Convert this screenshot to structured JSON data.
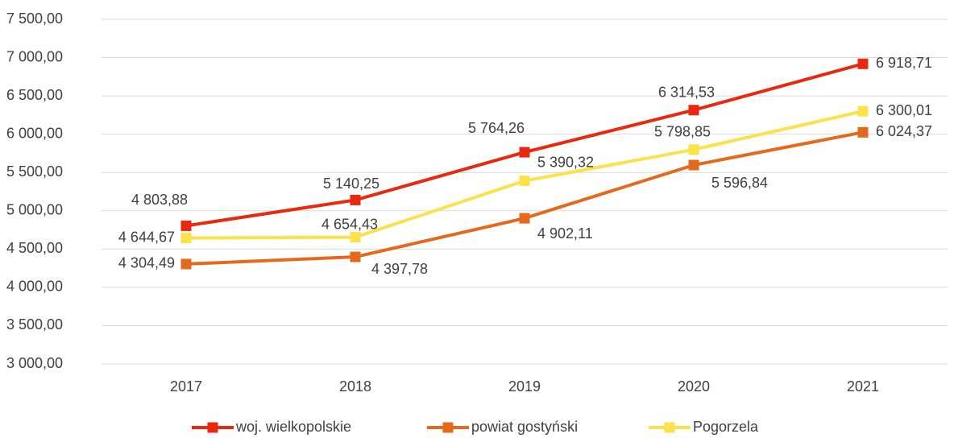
{
  "chart_data": {
    "type": "line",
    "categories": [
      "2017",
      "2018",
      "2019",
      "2020",
      "2021"
    ],
    "series": [
      {
        "name": "woj. wielkopolskie",
        "color": "#e8290f",
        "values": [
          4803.88,
          5140.25,
          5764.26,
          6314.53,
          6918.71
        ],
        "value_labels": [
          "4 803,88",
          "5 140,25",
          "5 764,26",
          "6 314,53",
          "6 918,71"
        ]
      },
      {
        "name": "powiat gostyński",
        "color": "#e5691c",
        "values": [
          4304.49,
          4397.78,
          4902.11,
          5596.84,
          6024.37
        ],
        "value_labels": [
          "4 304,49",
          "4 397,78",
          "4 902,11",
          "5 596,84",
          "6 024,37"
        ]
      },
      {
        "name": "Pogorzela",
        "color": "#fbe14a",
        "values": [
          4644.67,
          4654.43,
          5390.32,
          5798.85,
          6300.01
        ],
        "value_labels": [
          "4 644,67",
          "4 654,43",
          "5 390,32",
          "5 798,85",
          "6 300,01"
        ]
      }
    ],
    "ylim": [
      3000,
      7500
    ],
    "yticks": [
      {
        "value": 3000,
        "label": "3 000,00"
      },
      {
        "value": 3500,
        "label": "3 500,00"
      },
      {
        "value": 4000,
        "label": "4 000,00"
      },
      {
        "value": 4500,
        "label": "4 500,00"
      },
      {
        "value": 5000,
        "label": "5 000,00"
      },
      {
        "value": 5500,
        "label": "5 500,00"
      },
      {
        "value": 6000,
        "label": "6 000,00"
      },
      {
        "value": 6500,
        "label": "6 500,00"
      },
      {
        "value": 7000,
        "label": "7 000,00"
      },
      {
        "value": 7500,
        "label": "7 500,00"
      }
    ],
    "grid": true,
    "legend": "bottom"
  }
}
